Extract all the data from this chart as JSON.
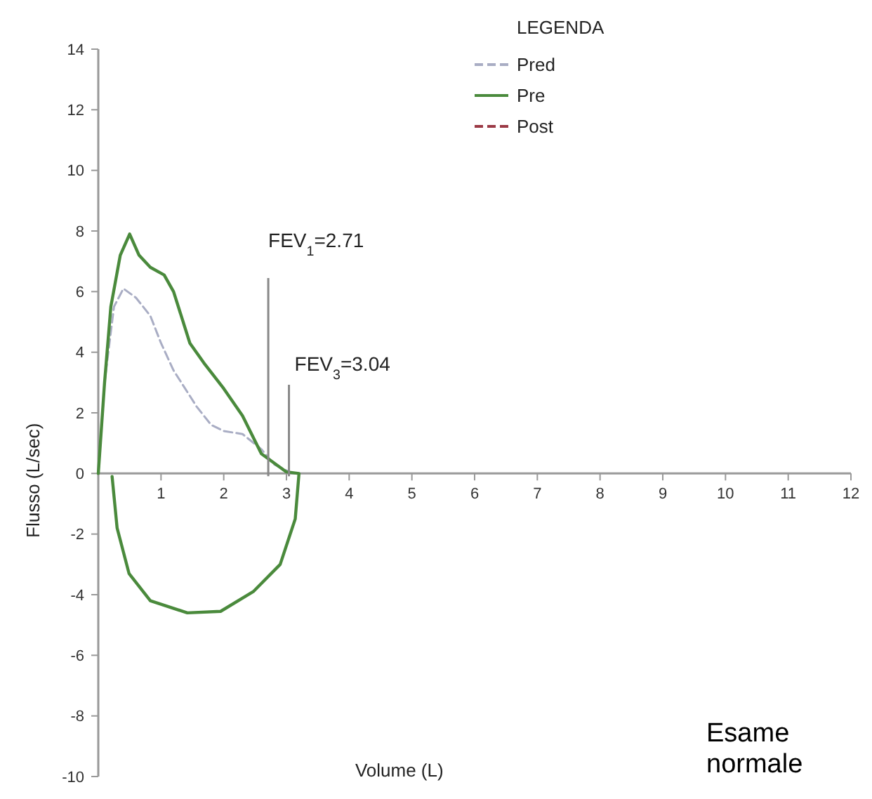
{
  "chart_data": {
    "type": "line",
    "xlabel": "Volume (L)",
    "ylabel": "Flusso (L/sec)",
    "legend_title": "LEGENDA",
    "legend": "top right",
    "grid": false,
    "xlim": [
      0,
      12
    ],
    "ylim": [
      -10,
      14
    ],
    "xticks": [
      1,
      2,
      3,
      4,
      5,
      6,
      7,
      8,
      9,
      10,
      11,
      12
    ],
    "yticks": [
      -10,
      -8,
      -6,
      -4,
      -2,
      0,
      2,
      4,
      6,
      8,
      10,
      12,
      14
    ],
    "series": [
      {
        "name": "Pred",
        "color": "#a9adc4",
        "line_style": "dashed",
        "x": [
          0,
          0.1,
          0.25,
          0.4,
          0.6,
          0.83,
          1.0,
          1.2,
          1.57,
          1.8,
          2.0,
          2.3,
          2.6,
          2.8,
          3.1
        ],
        "values": [
          0,
          3,
          5.5,
          6.1,
          5.8,
          5.2,
          4.3,
          3.4,
          2.2,
          1.6,
          1.4,
          1.3,
          0.8,
          0.3,
          0
        ]
      },
      {
        "name": "Pre",
        "color": "#4a8a3c",
        "line_style": "solid",
        "x": [
          0,
          0.1,
          0.2,
          0.35,
          0.5,
          0.65,
          0.83,
          1.05,
          1.2,
          1.46,
          1.7,
          2.0,
          2.3,
          2.6,
          2.9,
          3.0,
          3.2,
          3.14,
          2.9,
          2.47,
          1.95,
          1.42,
          0.83,
          0.49,
          0.3,
          0.22
        ],
        "values": [
          0,
          3,
          5.5,
          7.2,
          7.9,
          7.2,
          6.8,
          6.55,
          6.0,
          4.3,
          3.6,
          2.8,
          1.9,
          0.65,
          0.2,
          0.05,
          0,
          -1.5,
          -3.0,
          -3.9,
          -4.55,
          -4.6,
          -4.2,
          -3.3,
          -1.8,
          -0.1
        ]
      },
      {
        "name": "Post",
        "color": "#9b3a46",
        "line_style": "dashed"
      }
    ],
    "ref_lines": [
      {
        "axis": "x",
        "value": 2.71,
        "label": "FEV$_{1}$=2.71",
        "color": "#888888"
      },
      {
        "axis": "x",
        "value": 3.04,
        "label": "FEV$_{3}$=3.04",
        "color": "#888888"
      }
    ],
    "annotations": [
      "Esame normale"
    ]
  }
}
